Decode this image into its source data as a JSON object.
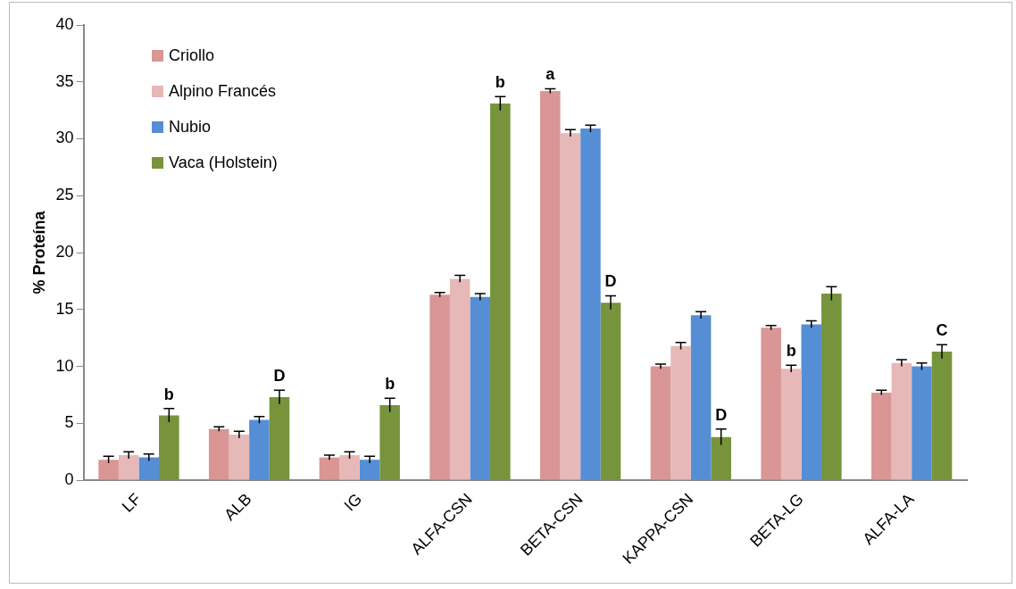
{
  "chart_data": {
    "type": "bar",
    "ylabel": "% Proteína",
    "categories": [
      "LF",
      "ALB",
      "IG",
      "ALFA-CSN",
      "BETA-CSN",
      "KAPPA-CSN",
      "BETA-LG",
      "ALFA-LA"
    ],
    "series": [
      {
        "name": "Criollo",
        "color": "#d99694",
        "values": [
          1.8,
          4.5,
          2.0,
          16.3,
          34.2,
          10.0,
          13.4,
          7.7
        ],
        "errors": [
          0.3,
          0.2,
          0.2,
          0.2,
          0.2,
          0.2,
          0.2,
          0.2
        ],
        "value_labels": [
          null,
          null,
          null,
          null,
          "a",
          null,
          null,
          null
        ]
      },
      {
        "name": "Alpino Francés",
        "color": "#e6b9b8",
        "values": [
          2.2,
          4.0,
          2.2,
          17.7,
          30.5,
          11.8,
          9.8,
          10.3
        ],
        "errors": [
          0.3,
          0.3,
          0.3,
          0.3,
          0.3,
          0.3,
          0.3,
          0.3
        ],
        "value_labels": [
          null,
          null,
          null,
          null,
          null,
          null,
          "b",
          null
        ]
      },
      {
        "name": "Nubio",
        "color": "#558ed5",
        "values": [
          2.0,
          5.3,
          1.8,
          16.1,
          30.9,
          14.5,
          13.7,
          10.0
        ],
        "errors": [
          0.3,
          0.3,
          0.3,
          0.3,
          0.3,
          0.3,
          0.3,
          0.3
        ]
      },
      {
        "name": "Vaca (Holstein)",
        "color": "#77933c",
        "values": [
          5.7,
          7.3,
          6.6,
          33.1,
          15.6,
          3.8,
          16.4,
          11.3
        ],
        "errors": [
          0.6,
          0.6,
          0.6,
          0.6,
          0.6,
          0.7,
          0.6,
          0.6
        ],
        "value_labels": [
          "b",
          "D",
          "b",
          "b",
          "D",
          "D",
          null,
          "C"
        ]
      }
    ],
    "ylim": [
      0,
      40
    ],
    "yticks": [
      0,
      5,
      10,
      15,
      20,
      25,
      30,
      35,
      40
    ],
    "grid": false,
    "legend": "top left"
  }
}
